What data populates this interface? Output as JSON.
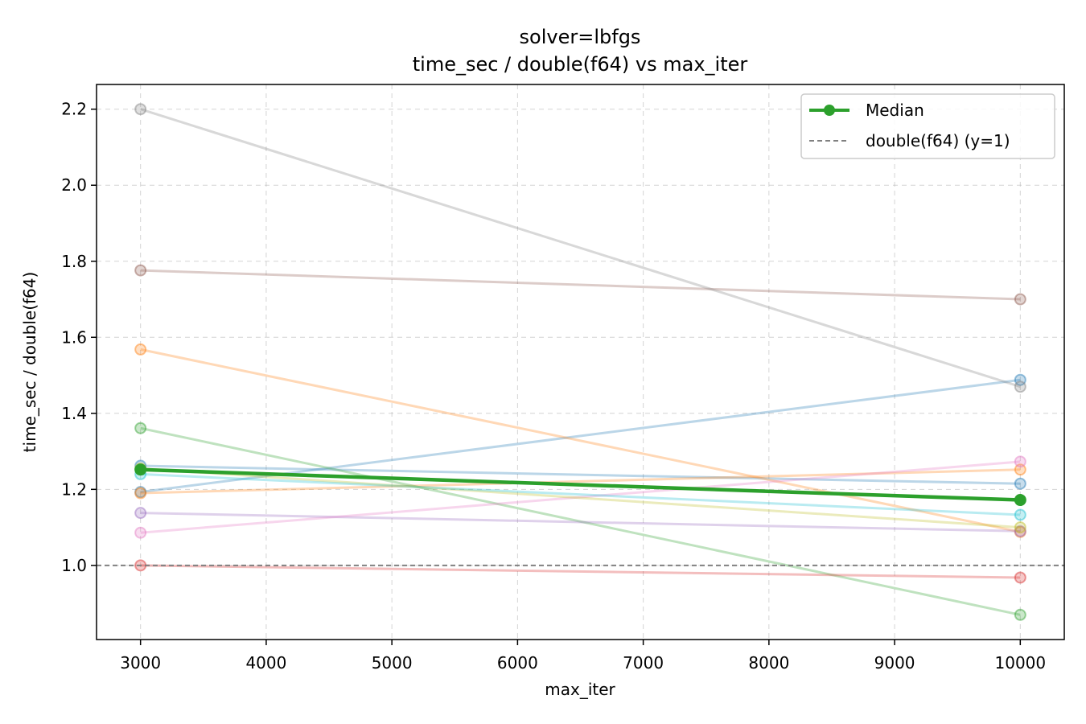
{
  "chart_data": {
    "type": "line",
    "title": "solver=lbfgs",
    "subtitle": "time_sec / double(f64) vs max_iter",
    "xlabel": "max_iter",
    "ylabel": "time_sec / double(f64)",
    "xlim": [
      2650,
      10350
    ],
    "ylim": [
      0.805,
      2.265
    ],
    "xticks": [
      3000,
      4000,
      5000,
      6000,
      7000,
      8000,
      9000,
      10000
    ],
    "yticks": [
      1.0,
      1.2,
      1.4,
      1.6,
      1.8,
      2.0,
      2.2
    ],
    "grid": true,
    "legend_position": "top-right",
    "x": [
      3000,
      10000
    ],
    "series": [
      {
        "color": "#1f77b4",
        "values": [
          1.193,
          1.488
        ]
      },
      {
        "color": "#1f77b4",
        "values": [
          1.262,
          1.215
        ]
      },
      {
        "color": "#ff7f0e",
        "values": [
          1.568,
          1.088
        ]
      },
      {
        "color": "#ff7f0e",
        "values": [
          1.19,
          1.252
        ]
      },
      {
        "color": "#2ca02c",
        "values": [
          1.361,
          0.87
        ]
      },
      {
        "color": "#d62728",
        "values": [
          1.0,
          0.968
        ]
      },
      {
        "color": "#9467bd",
        "values": [
          1.138,
          1.09
        ]
      },
      {
        "color": "#8c564b",
        "values": [
          1.776,
          1.7
        ]
      },
      {
        "color": "#e377c2",
        "values": [
          1.086,
          1.273
        ]
      },
      {
        "color": "#7f7f7f",
        "values": [
          2.2,
          1.47
        ]
      },
      {
        "color": "#bcbd22",
        "values": [
          1.255,
          1.1
        ]
      },
      {
        "color": "#17becf",
        "values": [
          1.24,
          1.133
        ]
      }
    ],
    "median": {
      "name": "Median",
      "color": "#2ca02c",
      "values": [
        1.252,
        1.172
      ]
    },
    "reference": {
      "name": "double(f64) (y=1)",
      "value": 1.0,
      "color": "#808080"
    }
  }
}
